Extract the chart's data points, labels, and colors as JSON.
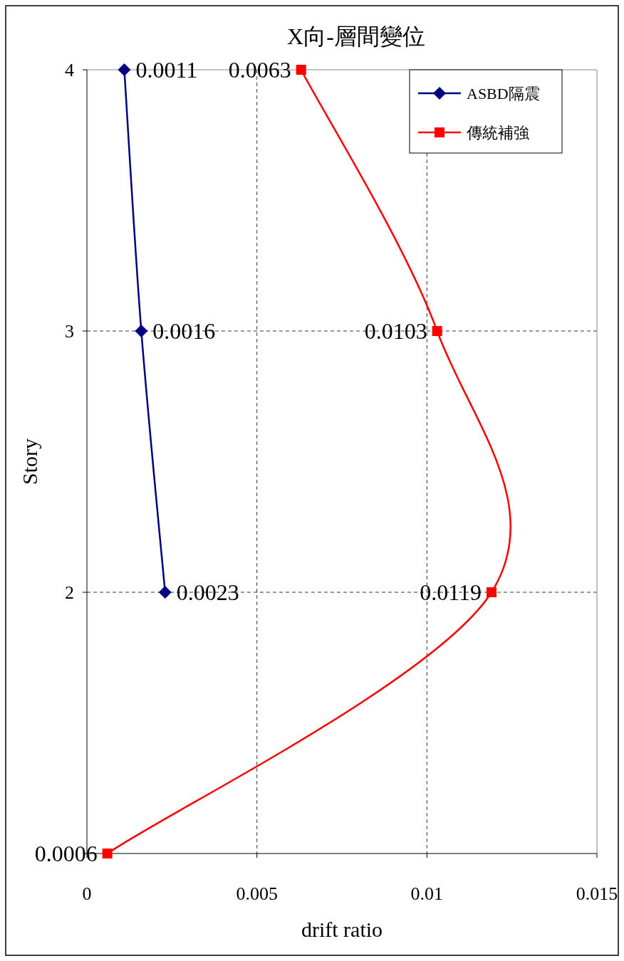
{
  "chart_data": {
    "type": "line",
    "orientation": "horizontal",
    "title": "X向-層間變位",
    "xlabel": "drift ratio",
    "ylabel": "Story",
    "categories": [
      "4",
      "3",
      "2",
      null
    ],
    "xlim": [
      0,
      0.015
    ],
    "xticks": [
      0,
      0.005,
      0.01,
      0.015
    ],
    "grid": true,
    "legend": "top right",
    "line_style": "solid",
    "data_labels": true,
    "series": [
      {
        "name": "ASBD隔震",
        "color": "#000080",
        "marker": "diamond",
        "values": [
          0.0011,
          0.0016,
          0.0023,
          null
        ]
      },
      {
        "name": "傳統補強",
        "color": "#ff0000",
        "marker": "square",
        "values": [
          0.0063,
          0.0103,
          0.0119,
          0.0006
        ]
      }
    ]
  }
}
